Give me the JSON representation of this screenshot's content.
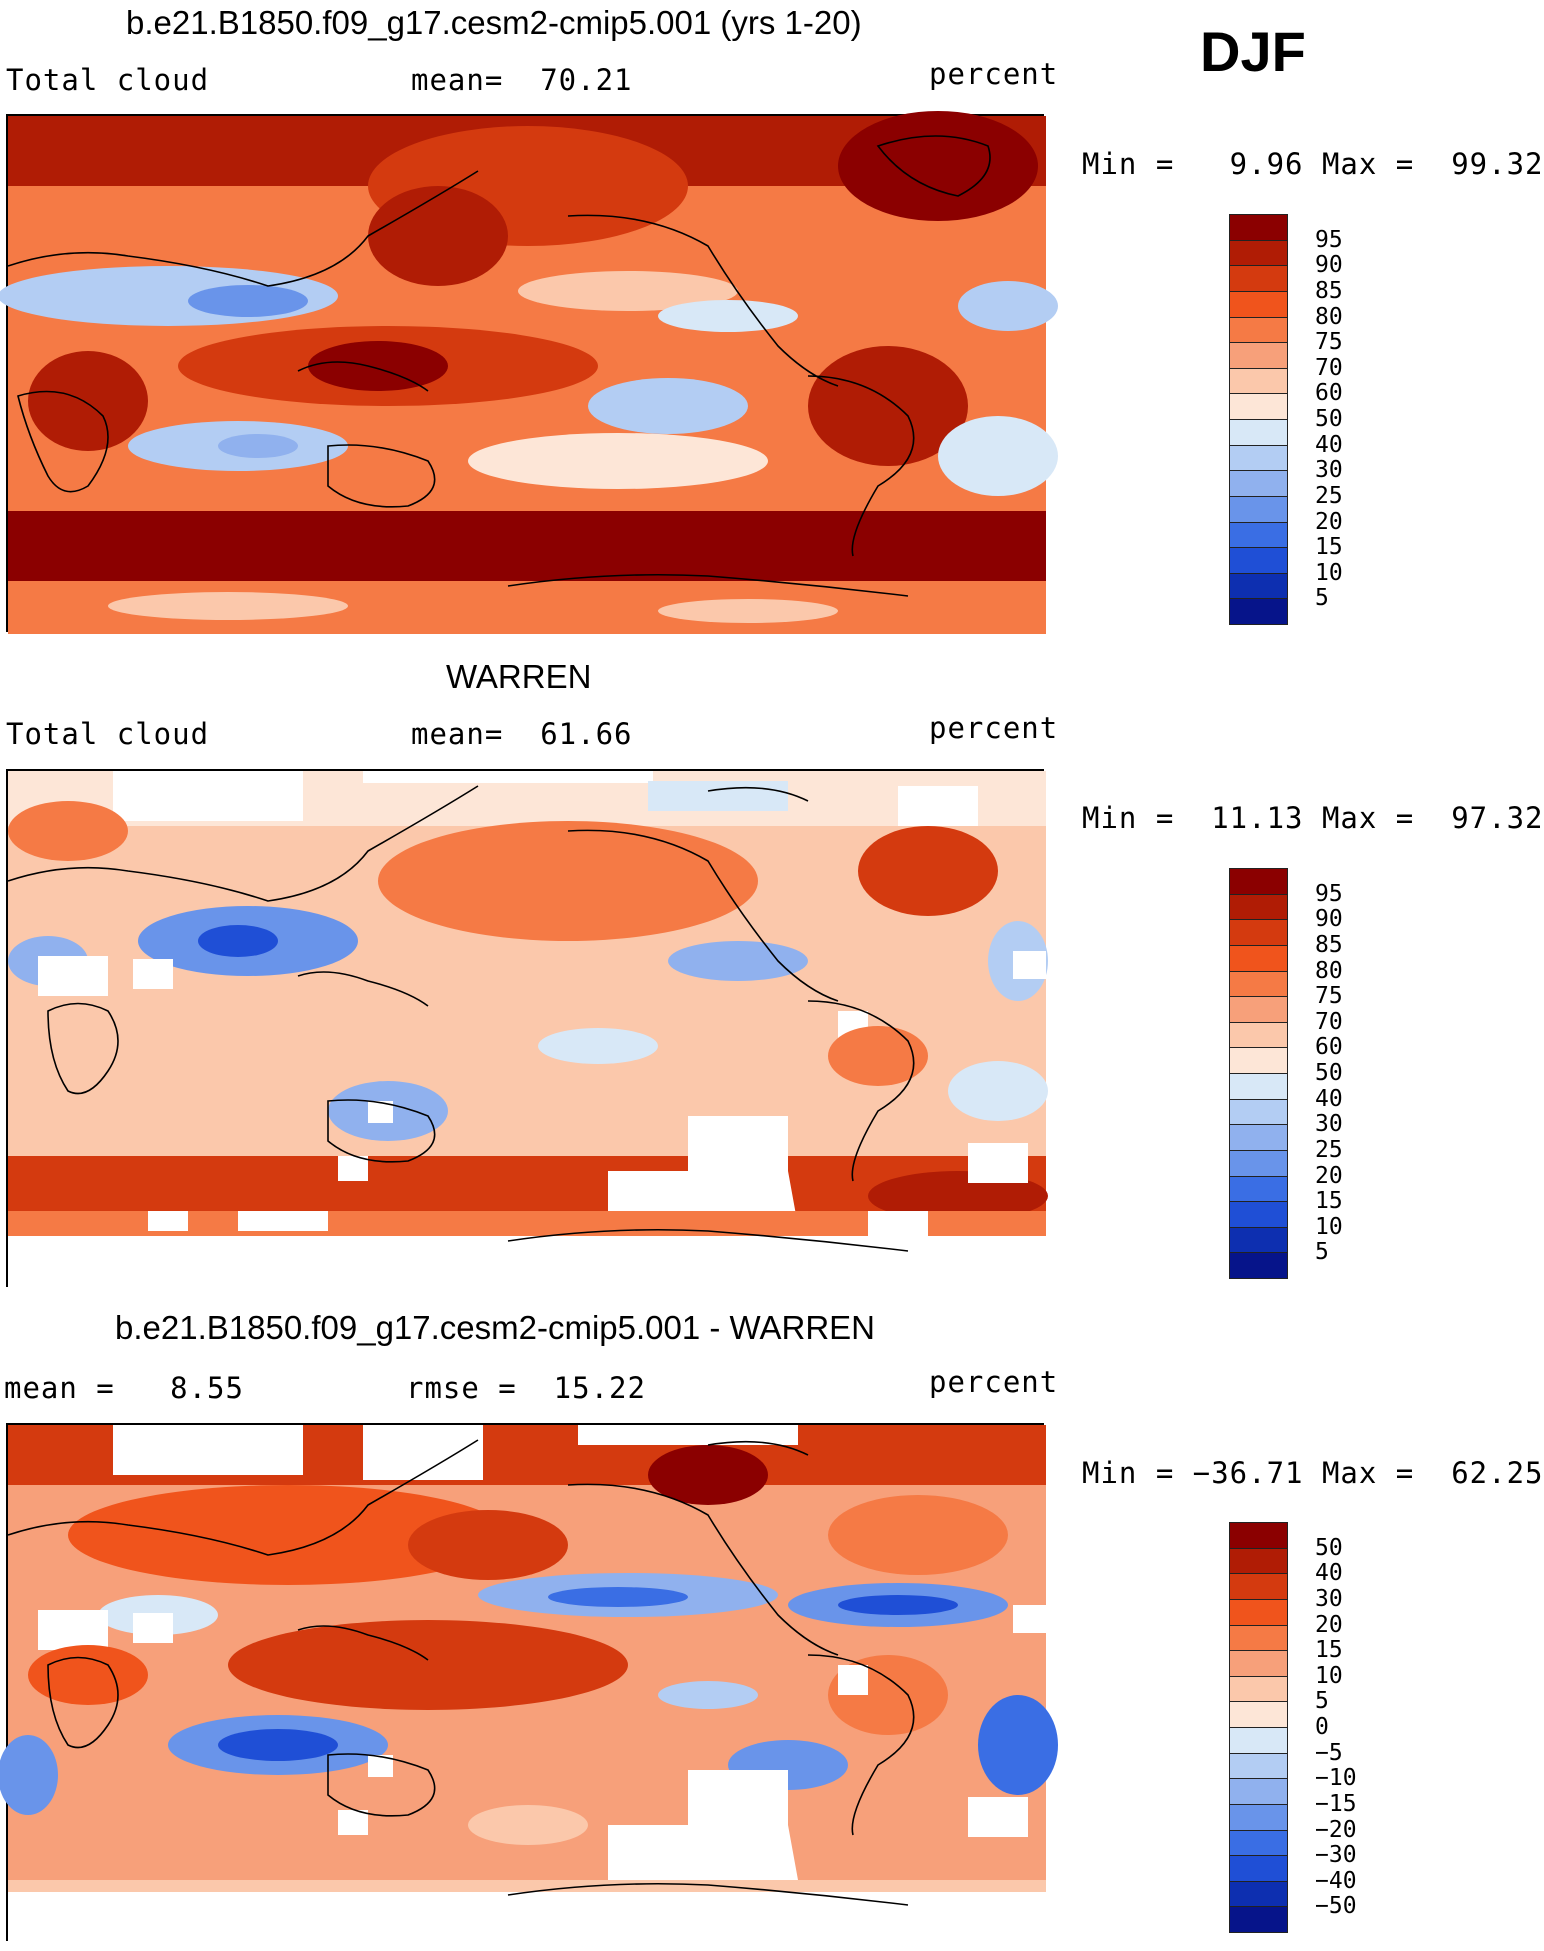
{
  "season": "DJF",
  "panels": [
    {
      "title": "b.e21.B1850.f09_g17.cesm2-cmip5.001 (yrs 1-20)",
      "left_label": "Total cloud",
      "center_label": "mean=  70.21",
      "right_label": "percent",
      "minmax": "Min =   9.96 Max =  99.32",
      "colorbar_levels": [
        "95",
        "90",
        "85",
        "80",
        "75",
        "70",
        "60",
        "50",
        "40",
        "30",
        "25",
        "20",
        "15",
        "10",
        "5"
      ],
      "colors": [
        "#8b0000",
        "#b01c05",
        "#d43a0f",
        "#f0541c",
        "#f57a45",
        "#f7a07a",
        "#fbc8ab",
        "#fde6d7",
        "#d8e8f7",
        "#b3cdf3",
        "#90b1ee",
        "#6994ea",
        "#3a6ee4",
        "#1f4fd6",
        "#0d2fb0",
        "#06148a"
      ]
    },
    {
      "title": "WARREN",
      "left_label": "Total cloud",
      "center_label": "mean=  61.66",
      "right_label": "percent",
      "minmax": "Min =  11.13 Max =  97.32",
      "colorbar_levels": [
        "95",
        "90",
        "85",
        "80",
        "75",
        "70",
        "60",
        "50",
        "40",
        "30",
        "25",
        "20",
        "15",
        "10",
        "5"
      ],
      "colors": [
        "#8b0000",
        "#b01c05",
        "#d43a0f",
        "#f0541c",
        "#f57a45",
        "#f7a07a",
        "#fbc8ab",
        "#fde6d7",
        "#d8e8f7",
        "#b3cdf3",
        "#90b1ee",
        "#6994ea",
        "#3a6ee4",
        "#1f4fd6",
        "#0d2fb0",
        "#06148a"
      ]
    },
    {
      "title": "b.e21.B1850.f09_g17.cesm2-cmip5.001 - WARREN",
      "left_label": "mean =   8.55",
      "center_label": "rmse =  15.22",
      "right_label": "percent",
      "minmax": "Min = −36.71 Max =  62.25",
      "colorbar_levels": [
        "50",
        "40",
        "30",
        "20",
        "15",
        "10",
        "5",
        "0",
        "−5",
        "−10",
        "−15",
        "−20",
        "−30",
        "−40",
        "−50"
      ],
      "colors": [
        "#8b0000",
        "#b01c05",
        "#d43a0f",
        "#f0541c",
        "#f57a45",
        "#f7a07a",
        "#fbc8ab",
        "#fde6d7",
        "#d8e8f7",
        "#b3cdf3",
        "#90b1ee",
        "#6994ea",
        "#3a6ee4",
        "#1f4fd6",
        "#0d2fb0",
        "#06148a"
      ]
    }
  ]
}
